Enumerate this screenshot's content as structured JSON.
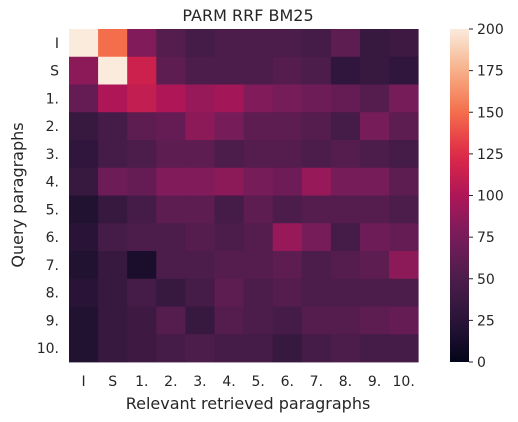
{
  "chart_data": {
    "type": "heatmap",
    "title": "PARM RRF BM25",
    "xlabel": "Relevant retrieved paragraphs",
    "ylabel": "Query paragraphs",
    "x_categories": [
      "I",
      "S",
      "1.",
      "2.",
      "3.",
      "4.",
      "5.",
      "6.",
      "7.",
      "8.",
      "9.",
      "10."
    ],
    "y_categories": [
      "I",
      "S",
      "1.",
      "2.",
      "3.",
      "4.",
      "5.",
      "6.",
      "7.",
      "8.",
      "9.",
      "10."
    ],
    "values": [
      [
        200,
        150,
        80,
        55,
        45,
        50,
        50,
        50,
        45,
        60,
        35,
        40
      ],
      [
        85,
        200,
        115,
        60,
        50,
        50,
        50,
        55,
        50,
        30,
        35,
        30
      ],
      [
        65,
        100,
        110,
        100,
        90,
        95,
        80,
        75,
        70,
        65,
        55,
        75
      ],
      [
        35,
        45,
        60,
        65,
        85,
        75,
        60,
        60,
        55,
        45,
        75,
        60
      ],
      [
        30,
        45,
        50,
        60,
        60,
        50,
        55,
        55,
        50,
        55,
        50,
        45
      ],
      [
        35,
        70,
        65,
        80,
        80,
        85,
        75,
        70,
        90,
        75,
        75,
        60
      ],
      [
        20,
        35,
        45,
        60,
        60,
        45,
        60,
        50,
        55,
        55,
        55,
        50
      ],
      [
        25,
        45,
        50,
        50,
        55,
        50,
        55,
        90,
        75,
        45,
        70,
        65
      ],
      [
        20,
        35,
        15,
        50,
        50,
        55,
        55,
        60,
        50,
        55,
        60,
        85
      ],
      [
        25,
        35,
        45,
        35,
        45,
        60,
        50,
        55,
        50,
        50,
        50,
        50
      ],
      [
        20,
        35,
        40,
        55,
        35,
        55,
        50,
        45,
        55,
        55,
        60,
        65
      ],
      [
        20,
        35,
        40,
        45,
        50,
        45,
        45,
        35,
        45,
        50,
        45,
        45
      ]
    ],
    "colorbar": {
      "min": 0,
      "max": 200,
      "ticks": [
        0,
        25,
        50,
        75,
        100,
        125,
        150,
        175,
        200
      ]
    },
    "colormap": "rocket",
    "grid": false
  }
}
